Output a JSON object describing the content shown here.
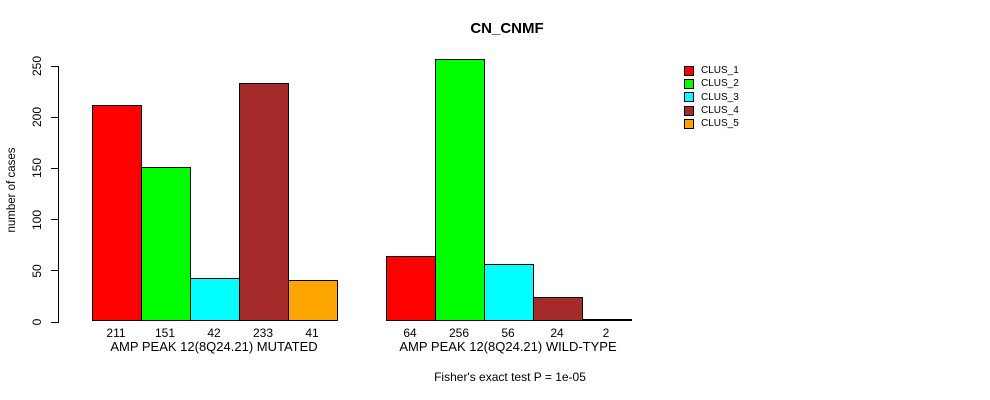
{
  "title": "CN_CNMF",
  "ylabel": "number of cases",
  "footer": "Fisher's exact test P = 1e-05",
  "legend": [
    {
      "label": "CLUS_1",
      "color": "#FF0000"
    },
    {
      "label": "CLUS_2",
      "color": "#00FF00"
    },
    {
      "label": "CLUS_3",
      "color": "#00FFFF"
    },
    {
      "label": "CLUS_4",
      "color": "#A52A2A"
    },
    {
      "label": "CLUS_5",
      "color": "#FFA500"
    }
  ],
  "chart_data": {
    "type": "bar",
    "categories": [
      "AMP PEAK 12(8Q24.21) MUTATED",
      "AMP PEAK 12(8Q24.21) WILD-TYPE"
    ],
    "series": [
      {
        "name": "CLUS_1",
        "color": "#FF0000",
        "values": [
          211,
          64
        ]
      },
      {
        "name": "CLUS_2",
        "color": "#00FF00",
        "values": [
          151,
          256
        ]
      },
      {
        "name": "CLUS_3",
        "color": "#00FFFF",
        "values": [
          42,
          56
        ]
      },
      {
        "name": "CLUS_4",
        "color": "#A52A2A",
        "values": [
          233,
          24
        ]
      },
      {
        "name": "CLUS_5",
        "color": "#FFA500",
        "values": [
          41,
          2
        ]
      }
    ],
    "yticks": [
      0,
      50,
      100,
      150,
      200,
      250
    ],
    "ylim": [
      0,
      260
    ],
    "ylabel": "number of cases",
    "title": "CN_CNMF",
    "grid": false,
    "legend_position": "top-right-outside-bars",
    "bar_value_labels_shown": true,
    "annotation": "Fisher's exact test P = 1e-05"
  }
}
